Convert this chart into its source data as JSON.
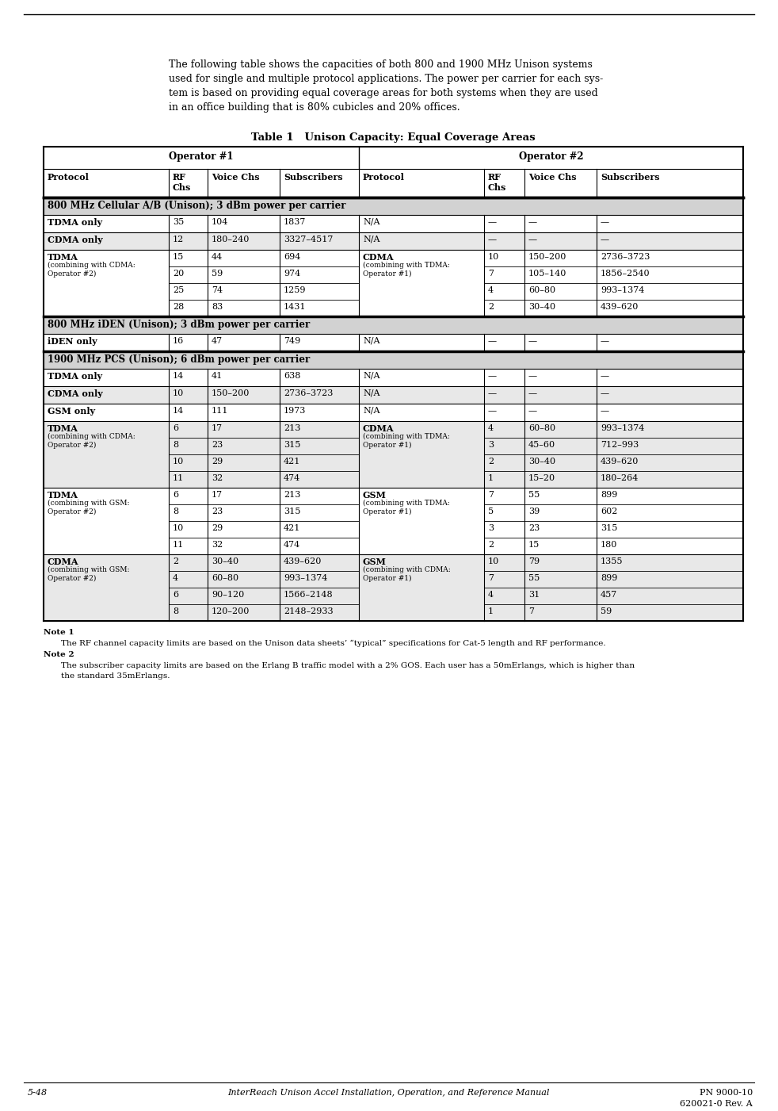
{
  "page_title_left": "5-48",
  "page_title_center": "InterReach Unison Accel Installation, Operation, and Reference Manual",
  "page_title_right_line1": "PN 9000-10",
  "page_title_right_line2": "620021-0 Rev. A",
  "intro_text_lines": [
    "The following table shows the capacities of both 800 and 1900 MHz Unison systems",
    "used for single and multiple protocol applications. The power per carrier for each sys-",
    "tem is based on providing equal coverage areas for both systems when they are used",
    "in an office building that is 80% cubicles and 20% offices."
  ],
  "table_title": "Table 1   Unison Capacity: Equal Coverage Areas",
  "note1_title": "Note 1",
  "note1_text": "The RF channel capacity limits are based on the Unison data sheets’ “typical” specifications for Cat-5 length and RF performance.",
  "note2_title": "Note 2",
  "note2_text_lines": [
    "The subscriber capacity limits are based on the Erlang B traffic model with a 2% GOS. Each user has a 50mErlangs, which is higher than",
    "the standard 35mErlangs."
  ],
  "col_labels": [
    "Protocol",
    "RF\nChs",
    "Voice Chs",
    "Subscribers",
    "Protocol",
    "RF\nChs",
    "Voice Chs",
    "Subscribers"
  ],
  "op1_label": "Operator #1",
  "op2_label": "Operator #2",
  "section_bg": "#d2d2d2",
  "table_rows": [
    {
      "type": "section",
      "text": "800 MHz Cellular A/B (Unison); 3 dBm power per carrier"
    },
    {
      "type": "data",
      "bg": "white",
      "op1_proto": "TDMA only",
      "op1_rf": "35",
      "op1_voice": "104",
      "op1_sub": "1837",
      "op2_proto": "N/A",
      "op2_rf": "—",
      "op2_voice": "—",
      "op2_sub": "—",
      "bold_l": true,
      "bold_r": false
    },
    {
      "type": "data",
      "bg": "light",
      "op1_proto": "CDMA only",
      "op1_rf": "12",
      "op1_voice": "180–240",
      "op1_sub": "3327–4517",
      "op2_proto": "N/A",
      "op2_rf": "—",
      "op2_voice": "—",
      "op2_sub": "—",
      "bold_l": true,
      "bold_r": false
    },
    {
      "type": "multirow",
      "bg": "white",
      "op1_main": "TDMA",
      "op1_sub": "(combining with CDMA:\nOperator #2)",
      "op2_main": "CDMA",
      "op2_sub": "(combining with TDMA:\nOperator #1)",
      "bold_l": true,
      "bold_r": true,
      "rows": [
        {
          "op1_rf": "15",
          "op1_voice": "44",
          "op1_sub": "694",
          "op2_rf": "10",
          "op2_voice": "150–200",
          "op2_sub": "2736–3723"
        },
        {
          "op1_rf": "20",
          "op1_voice": "59",
          "op1_sub": "974",
          "op2_rf": "7",
          "op2_voice": "105–140",
          "op2_sub": "1856–2540"
        },
        {
          "op1_rf": "25",
          "op1_voice": "74",
          "op1_sub": "1259",
          "op2_rf": "4",
          "op2_voice": "60–80",
          "op2_sub": "993–1374"
        },
        {
          "op1_rf": "28",
          "op1_voice": "83",
          "op1_sub": "1431",
          "op2_rf": "2",
          "op2_voice": "30–40",
          "op2_sub": "439–620"
        }
      ]
    },
    {
      "type": "section",
      "text": "800 MHz iDEN (Unison); 3 dBm power per carrier"
    },
    {
      "type": "data",
      "bg": "white",
      "op1_proto": "iDEN only",
      "op1_rf": "16",
      "op1_voice": "47",
      "op1_sub": "749",
      "op2_proto": "N/A",
      "op2_rf": "—",
      "op2_voice": "—",
      "op2_sub": "—",
      "bold_l": true,
      "bold_r": false
    },
    {
      "type": "section",
      "text": "1900 MHz PCS (Unison); 6 dBm power per carrier"
    },
    {
      "type": "data",
      "bg": "white",
      "op1_proto": "TDMA only",
      "op1_rf": "14",
      "op1_voice": "41",
      "op1_sub": "638",
      "op2_proto": "N/A",
      "op2_rf": "—",
      "op2_voice": "—",
      "op2_sub": "—",
      "bold_l": true,
      "bold_r": false
    },
    {
      "type": "data",
      "bg": "light",
      "op1_proto": "CDMA only",
      "op1_rf": "10",
      "op1_voice": "150–200",
      "op1_sub": "2736–3723",
      "op2_proto": "N/A",
      "op2_rf": "—",
      "op2_voice": "—",
      "op2_sub": "—",
      "bold_l": true,
      "bold_r": false
    },
    {
      "type": "data",
      "bg": "white",
      "op1_proto": "GSM only",
      "op1_rf": "14",
      "op1_voice": "111",
      "op1_sub": "1973",
      "op2_proto": "N/A",
      "op2_rf": "—",
      "op2_voice": "—",
      "op2_sub": "—",
      "bold_l": true,
      "bold_r": false
    },
    {
      "type": "multirow",
      "bg": "light",
      "op1_main": "TDMA",
      "op1_sub": "(combining with CDMA:\nOperator #2)",
      "op2_main": "CDMA",
      "op2_sub": "(combining with TDMA:\nOperator #1)",
      "bold_l": true,
      "bold_r": true,
      "rows": [
        {
          "op1_rf": "6",
          "op1_voice": "17",
          "op1_sub": "213",
          "op2_rf": "4",
          "op2_voice": "60–80",
          "op2_sub": "993–1374"
        },
        {
          "op1_rf": "8",
          "op1_voice": "23",
          "op1_sub": "315",
          "op2_rf": "3",
          "op2_voice": "45–60",
          "op2_sub": "712–993"
        },
        {
          "op1_rf": "10",
          "op1_voice": "29",
          "op1_sub": "421",
          "op2_rf": "2",
          "op2_voice": "30–40",
          "op2_sub": "439–620"
        },
        {
          "op1_rf": "11",
          "op1_voice": "32",
          "op1_sub": "474",
          "op2_rf": "1",
          "op2_voice": "15–20",
          "op2_sub": "180–264"
        }
      ]
    },
    {
      "type": "multirow",
      "bg": "white",
      "op1_main": "TDMA",
      "op1_sub": "(combining with GSM:\nOperator #2)",
      "op2_main": "GSM",
      "op2_sub": "(combining with TDMA:\nOperator #1)",
      "bold_l": true,
      "bold_r": true,
      "rows": [
        {
          "op1_rf": "6",
          "op1_voice": "17",
          "op1_sub": "213",
          "op2_rf": "7",
          "op2_voice": "55",
          "op2_sub": "899"
        },
        {
          "op1_rf": "8",
          "op1_voice": "23",
          "op1_sub": "315",
          "op2_rf": "5",
          "op2_voice": "39",
          "op2_sub": "602"
        },
        {
          "op1_rf": "10",
          "op1_voice": "29",
          "op1_sub": "421",
          "op2_rf": "3",
          "op2_voice": "23",
          "op2_sub": "315"
        },
        {
          "op1_rf": "11",
          "op1_voice": "32",
          "op1_sub": "474",
          "op2_rf": "2",
          "op2_voice": "15",
          "op2_sub": "180"
        }
      ]
    },
    {
      "type": "multirow",
      "bg": "light",
      "op1_main": "CDMA",
      "op1_sub": "(combining with GSM:\nOperator #2)",
      "op2_main": "GSM",
      "op2_sub": "(combining with CDMA:\nOperator #1)",
      "bold_l": true,
      "bold_r": true,
      "rows": [
        {
          "op1_rf": "2",
          "op1_voice": "30–40",
          "op1_sub": "439–620",
          "op2_rf": "10",
          "op2_voice": "79",
          "op2_sub": "1355"
        },
        {
          "op1_rf": "4",
          "op1_voice": "60–80",
          "op1_sub": "993–1374",
          "op2_rf": "7",
          "op2_voice": "55",
          "op2_sub": "899"
        },
        {
          "op1_rf": "6",
          "op1_voice": "90–120",
          "op1_sub": "1566–2148",
          "op2_rf": "4",
          "op2_voice": "31",
          "op2_sub": "457"
        },
        {
          "op1_rf": "8",
          "op1_voice": "120–200",
          "op1_sub": "2148–2933",
          "op2_rf": "1",
          "op2_voice": "7",
          "op2_sub": "59"
        }
      ]
    }
  ]
}
